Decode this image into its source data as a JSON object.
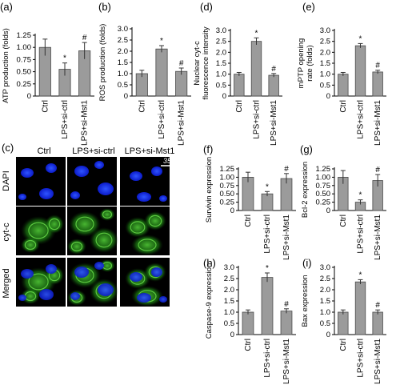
{
  "x_categories": [
    "Ctrl",
    "LPS+si-ctrl",
    "LPS+si-Mst1"
  ],
  "micro": {
    "panel_label": "(c)",
    "columns": [
      "Ctrl",
      "LPS+si-ctrl",
      "LPS+si-Mst1"
    ],
    "rows": [
      "DAPI",
      "cyt-c",
      "Merged"
    ],
    "scale_bar": "35 μm"
  },
  "colors": {
    "bar_fill": "#9b9b9b",
    "bar_stroke": "#4a4a4a",
    "dapi": "#1428e6",
    "cytc": "#34c21e"
  },
  "chart_data": [
    {
      "id": "a",
      "panel_label": "(a)",
      "type": "bar",
      "ylabel": "ATP production (folds)",
      "categories": [
        "Ctrl",
        "LPS+si-ctrl",
        "LPS+si-Mst1"
      ],
      "values": [
        1.0,
        0.55,
        0.93
      ],
      "errors": [
        0.17,
        0.13,
        0.17
      ],
      "markers": [
        "",
        "*",
        "#"
      ],
      "ylim": [
        0,
        1.25
      ],
      "ticks": [
        0,
        0.25,
        0.5,
        0.75,
        1.0,
        1.25
      ],
      "tick_labels": [
        "0",
        "0.25",
        "0.50",
        "0.75",
        "1.00",
        "1.25"
      ]
    },
    {
      "id": "b",
      "panel_label": "(b)",
      "type": "bar",
      "ylabel": "ROS production (folds)",
      "categories": [
        "Ctrl",
        "LPS+si-ctrl",
        "LPS+si-Mst1"
      ],
      "values": [
        1.0,
        2.1,
        1.1
      ],
      "errors": [
        0.15,
        0.15,
        0.15
      ],
      "markers": [
        "",
        "*",
        "#"
      ],
      "ylim": [
        0,
        3.0
      ],
      "ticks": [
        0,
        0.5,
        1.0,
        1.5,
        2.0,
        2.5,
        3.0
      ],
      "tick_labels": [
        "0",
        "0.5",
        "1.0",
        "1.5",
        "2.0",
        "2.5",
        "3.0"
      ]
    },
    {
      "id": "d",
      "panel_label": "(d)",
      "type": "bar",
      "ylabel": "Nuclear cyt-c fluorescence intensity",
      "ylabel_lines": [
        "Nuclear cyt-c",
        "fluorescence intensity"
      ],
      "categories": [
        "Ctrl",
        "LPS+si-ctrl",
        "LPS+si-Mst1"
      ],
      "values": [
        1.0,
        2.5,
        0.95
      ],
      "errors": [
        0.08,
        0.16,
        0.08
      ],
      "markers": [
        "",
        "*",
        "#"
      ],
      "ylim": [
        0,
        3.0
      ],
      "ticks": [
        0,
        0.5,
        1.0,
        1.5,
        2.0,
        2.5,
        3.0
      ],
      "tick_labels": [
        "0",
        "0.5",
        "1.0",
        "1.5",
        "2.0",
        "2.5",
        "3.0"
      ]
    },
    {
      "id": "e",
      "panel_label": "(e)",
      "type": "bar",
      "ylabel": "mPTP opening rate (folds)",
      "ylabel_lines": [
        "mPTP opening",
        "rate (folds)"
      ],
      "categories": [
        "Ctrl",
        "LPS+si-ctrl",
        "LPS+si-Mst1"
      ],
      "values": [
        1.0,
        2.3,
        1.1
      ],
      "errors": [
        0.08,
        0.1,
        0.08
      ],
      "markers": [
        "",
        "*",
        "#"
      ],
      "ylim": [
        0,
        3.0
      ],
      "ticks": [
        0,
        0.5,
        1.0,
        1.5,
        2.0,
        2.5,
        3.0
      ],
      "tick_labels": [
        "0",
        "0.5",
        "1.0",
        "1.5",
        "2.0",
        "2.5",
        "3.0"
      ]
    },
    {
      "id": "f",
      "panel_label": "(f)",
      "type": "bar",
      "ylabel": "Survivin expression",
      "categories": [
        "Ctrl",
        "LPS+si-ctrl",
        "LPS+si-Mst1"
      ],
      "values": [
        1.0,
        0.5,
        0.96
      ],
      "errors": [
        0.15,
        0.07,
        0.15
      ],
      "markers": [
        "",
        "*",
        "#"
      ],
      "ylim": [
        0,
        1.25
      ],
      "ticks": [
        0,
        0.25,
        0.5,
        0.75,
        1.0,
        1.25
      ],
      "tick_labels": [
        "0",
        "0.25",
        "0.50",
        "0.75",
        "1.00",
        "1.25"
      ]
    },
    {
      "id": "g",
      "panel_label": "(g)",
      "type": "bar",
      "ylabel": "Bcl-2 expression",
      "categories": [
        "Ctrl",
        "LPS+si-ctrl",
        "LPS+si-Mst1"
      ],
      "values": [
        1.0,
        0.25,
        0.9
      ],
      "errors": [
        0.2,
        0.07,
        0.18
      ],
      "markers": [
        "",
        "*",
        "#"
      ],
      "ylim": [
        0,
        1.25
      ],
      "ticks": [
        0,
        0.25,
        0.5,
        0.75,
        1.0,
        1.25
      ],
      "tick_labels": [
        "0",
        "0.25",
        "0.50",
        "0.75",
        "1.00",
        "1.25"
      ]
    },
    {
      "id": "h",
      "panel_label": "(h)",
      "type": "bar",
      "ylabel": "Caspase-9 expression",
      "categories": [
        "Ctrl",
        "LPS+si-ctrl",
        "LPS+si-Mst1"
      ],
      "values": [
        1.0,
        2.55,
        1.05
      ],
      "errors": [
        0.1,
        0.2,
        0.1
      ],
      "markers": [
        "",
        "*",
        "#"
      ],
      "ylim": [
        0,
        3.0
      ],
      "ticks": [
        0,
        0.5,
        1.0,
        1.5,
        2.0,
        2.5,
        3.0
      ],
      "tick_labels": [
        "0",
        "0.5",
        "1.0",
        "1.5",
        "2.0",
        "2.5",
        "3.0"
      ]
    },
    {
      "id": "i",
      "panel_label": "(i)",
      "type": "bar",
      "ylabel": "Bax expression",
      "categories": [
        "Ctrl",
        "LPS+si-ctrl",
        "LPS+si-Mst1"
      ],
      "values": [
        1.0,
        2.35,
        1.0
      ],
      "errors": [
        0.1,
        0.1,
        0.1
      ],
      "markers": [
        "",
        "*",
        "#"
      ],
      "ylim": [
        0,
        3.0
      ],
      "ticks": [
        0,
        0.5,
        1.0,
        1.5,
        2.0,
        2.5,
        3.0
      ],
      "tick_labels": [
        "0",
        "0.5",
        "1.0",
        "1.5",
        "2.0",
        "2.5",
        "3.0"
      ]
    }
  ]
}
